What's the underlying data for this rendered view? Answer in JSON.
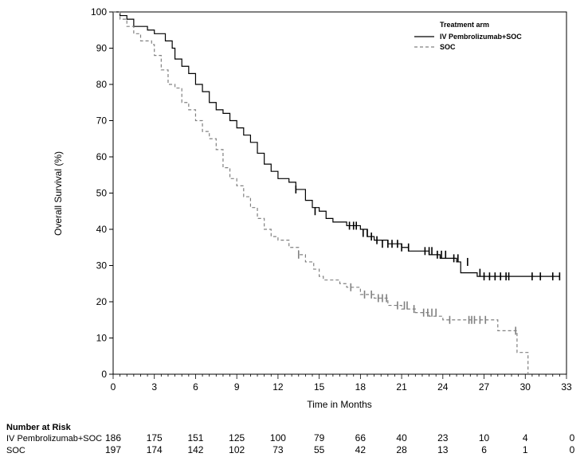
{
  "chart_data": {
    "type": "line",
    "subtype": "kaplan-meier",
    "xlabel": "Time in Months",
    "ylabel": "Overall Survival (%)",
    "xlim": [
      0,
      33
    ],
    "ylim": [
      0,
      100
    ],
    "xticks": [
      0,
      3,
      6,
      9,
      12,
      15,
      18,
      21,
      24,
      27,
      30,
      33
    ],
    "yticks": [
      0,
      10,
      20,
      30,
      40,
      50,
      60,
      70,
      80,
      90,
      100
    ],
    "grid": false,
    "legend": {
      "title": "Treatment arm",
      "placement": "top-right"
    },
    "series": [
      {
        "name": "IV Pembrolizumab+SOC",
        "color": "#000000",
        "style": "solid",
        "steps": [
          [
            0,
            100
          ],
          [
            0.5,
            99
          ],
          [
            1,
            98
          ],
          [
            1.5,
            96
          ],
          [
            2.5,
            95
          ],
          [
            3,
            94
          ],
          [
            3.8,
            92
          ],
          [
            4.3,
            90
          ],
          [
            4.5,
            87
          ],
          [
            5,
            85
          ],
          [
            5.5,
            83
          ],
          [
            6,
            80
          ],
          [
            6.5,
            78
          ],
          [
            7,
            75
          ],
          [
            7.5,
            73
          ],
          [
            8,
            72
          ],
          [
            8.5,
            70
          ],
          [
            9,
            68
          ],
          [
            9.5,
            66
          ],
          [
            10,
            64
          ],
          [
            10.5,
            61
          ],
          [
            11,
            58
          ],
          [
            11.5,
            56
          ],
          [
            12,
            54
          ],
          [
            12.8,
            53
          ],
          [
            13.3,
            51
          ],
          [
            14,
            48
          ],
          [
            14.5,
            46
          ],
          [
            15,
            45
          ],
          [
            15.5,
            43
          ],
          [
            16,
            42
          ],
          [
            17,
            41
          ],
          [
            18,
            40
          ],
          [
            18.5,
            38
          ],
          [
            19,
            37
          ],
          [
            20,
            36
          ],
          [
            21,
            35
          ],
          [
            21.5,
            34
          ],
          [
            23,
            33
          ],
          [
            23.8,
            32
          ],
          [
            25,
            31
          ],
          [
            25.3,
            28
          ],
          [
            26.5,
            27
          ],
          [
            32.5,
            27
          ]
        ],
        "censored": [
          [
            13.3,
            51
          ],
          [
            14.7,
            45
          ],
          [
            17.2,
            41
          ],
          [
            17.5,
            41
          ],
          [
            17.7,
            41
          ],
          [
            18.2,
            39
          ],
          [
            18.5,
            39
          ],
          [
            18.8,
            38
          ],
          [
            19.2,
            37
          ],
          [
            19.6,
            36
          ],
          [
            20,
            36
          ],
          [
            20.3,
            36
          ],
          [
            20.7,
            36
          ],
          [
            21,
            35
          ],
          [
            21.5,
            35
          ],
          [
            22.7,
            34
          ],
          [
            23,
            34
          ],
          [
            23.2,
            34
          ],
          [
            23.6,
            33
          ],
          [
            23.9,
            33
          ],
          [
            24.2,
            33
          ],
          [
            24.8,
            32
          ],
          [
            25.1,
            32
          ],
          [
            25.8,
            31
          ],
          [
            26.7,
            28
          ],
          [
            27,
            27
          ],
          [
            27.4,
            27
          ],
          [
            27.8,
            27
          ],
          [
            28.2,
            27
          ],
          [
            28.6,
            27
          ],
          [
            28.8,
            27
          ],
          [
            30.5,
            27
          ],
          [
            31.1,
            27
          ],
          [
            32,
            27
          ],
          [
            32.5,
            27
          ]
        ]
      },
      {
        "name": "SOC",
        "color": "#808080",
        "style": "dashed",
        "steps": [
          [
            0,
            100
          ],
          [
            0.5,
            98
          ],
          [
            1,
            96
          ],
          [
            1.5,
            94
          ],
          [
            2,
            92
          ],
          [
            2.8,
            91
          ],
          [
            3,
            88
          ],
          [
            3.5,
            84
          ],
          [
            4,
            80
          ],
          [
            4.5,
            79
          ],
          [
            5,
            75
          ],
          [
            5.5,
            73
          ],
          [
            6,
            70
          ],
          [
            6.5,
            67
          ],
          [
            7,
            65
          ],
          [
            7.5,
            62
          ],
          [
            8,
            57
          ],
          [
            8.5,
            54
          ],
          [
            9,
            52
          ],
          [
            9.5,
            49
          ],
          [
            10,
            46
          ],
          [
            10.5,
            43
          ],
          [
            11,
            40
          ],
          [
            11.5,
            38
          ],
          [
            12,
            37
          ],
          [
            12.8,
            35
          ],
          [
            13.5,
            33
          ],
          [
            14,
            31
          ],
          [
            14.6,
            29
          ],
          [
            15,
            27
          ],
          [
            15.3,
            26
          ],
          [
            16.5,
            25
          ],
          [
            17,
            24
          ],
          [
            18,
            22
          ],
          [
            19,
            21
          ],
          [
            20,
            19
          ],
          [
            21,
            18
          ],
          [
            22,
            17
          ],
          [
            23,
            16
          ],
          [
            24,
            15
          ],
          [
            28,
            15
          ],
          [
            28,
            12
          ],
          [
            29.3,
            12
          ],
          [
            29.4,
            6
          ],
          [
            30.2,
            6
          ],
          [
            30.2,
            0
          ]
        ],
        "censored": [
          [
            13.5,
            33
          ],
          [
            17.3,
            24
          ],
          [
            18.3,
            22
          ],
          [
            18.8,
            22
          ],
          [
            19.3,
            21
          ],
          [
            19.6,
            21
          ],
          [
            19.9,
            21
          ],
          [
            20.7,
            19
          ],
          [
            21.2,
            19
          ],
          [
            21.4,
            19
          ],
          [
            21.9,
            18
          ],
          [
            22.6,
            17
          ],
          [
            22.9,
            17
          ],
          [
            23.2,
            17
          ],
          [
            23.5,
            17
          ],
          [
            24.5,
            15
          ],
          [
            25.9,
            15
          ],
          [
            26.1,
            15
          ],
          [
            26.3,
            15
          ],
          [
            26.7,
            15
          ],
          [
            27.1,
            15
          ],
          [
            29.3,
            12
          ]
        ]
      }
    ],
    "risk_table": {
      "title": "Number at Risk",
      "times": [
        0,
        3,
        6,
        9,
        12,
        15,
        18,
        21,
        24,
        27,
        30,
        33
      ],
      "rows": [
        {
          "label": "IV Pembrolizumab+SOC",
          "values": [
            "186",
            "175",
            "151",
            "125",
            "100",
            "79",
            "66",
            "40",
            "23",
            "10",
            "4",
            "0"
          ]
        },
        {
          "label": "SOC",
          "values": [
            "197",
            "174",
            "142",
            "102",
            "73",
            "55",
            "42",
            "28",
            "13",
            "6",
            "1",
            "0"
          ]
        }
      ]
    }
  }
}
